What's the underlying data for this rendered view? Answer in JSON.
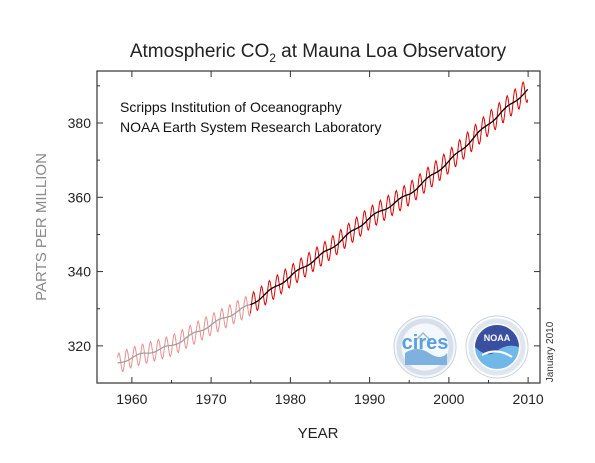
{
  "chart_data": {
    "type": "line",
    "title": {
      "prefix": "Atmospheric CO",
      "subscript": "2",
      "suffix": " at Mauna Loa Observatory"
    },
    "credits": [
      "Scripps Institution of Oceanography",
      "NOAA Earth System Research Laboratory"
    ],
    "xlabel": "YEAR",
    "ylabel": "PARTS PER MILLION",
    "date_note": "January 2010",
    "logos": {
      "left": "cires",
      "right": "NOAA"
    },
    "xlim": [
      1955.6,
      2011.5
    ],
    "ylim": [
      310,
      394
    ],
    "xticks": [
      1960,
      1970,
      1980,
      1990,
      2000,
      2010
    ],
    "yticks": [
      320,
      340,
      360,
      380
    ],
    "grid": false,
    "colors": {
      "monthly": "#e00000",
      "monthly_early": "#e89090",
      "trend": "#000000",
      "trend_early": "#a0a0a0",
      "axis_label_gray": "#8a8a8a"
    },
    "series": [
      {
        "key": "monthly",
        "seasonal_amplitude_ppm": 3.2,
        "years": [
          1958.2,
          1960,
          1965,
          1970,
          1975,
          1980,
          1985,
          1990,
          1995,
          2000,
          2005,
          2010
        ],
        "ppm": [
          315.2,
          316.9,
          320.0,
          325.7,
          331.1,
          338.7,
          346.1,
          354.4,
          360.9,
          369.6,
          379.8,
          389.0
        ]
      },
      {
        "key": "trend",
        "years": [
          1958.2,
          1960,
          1965,
          1970,
          1975,
          1980,
          1985,
          1990,
          1995,
          2000,
          2005,
          2010
        ],
        "ppm": [
          315.2,
          316.9,
          320.0,
          325.7,
          331.1,
          338.7,
          346.1,
          354.4,
          360.9,
          369.6,
          379.8,
          389.0
        ]
      }
    ]
  }
}
